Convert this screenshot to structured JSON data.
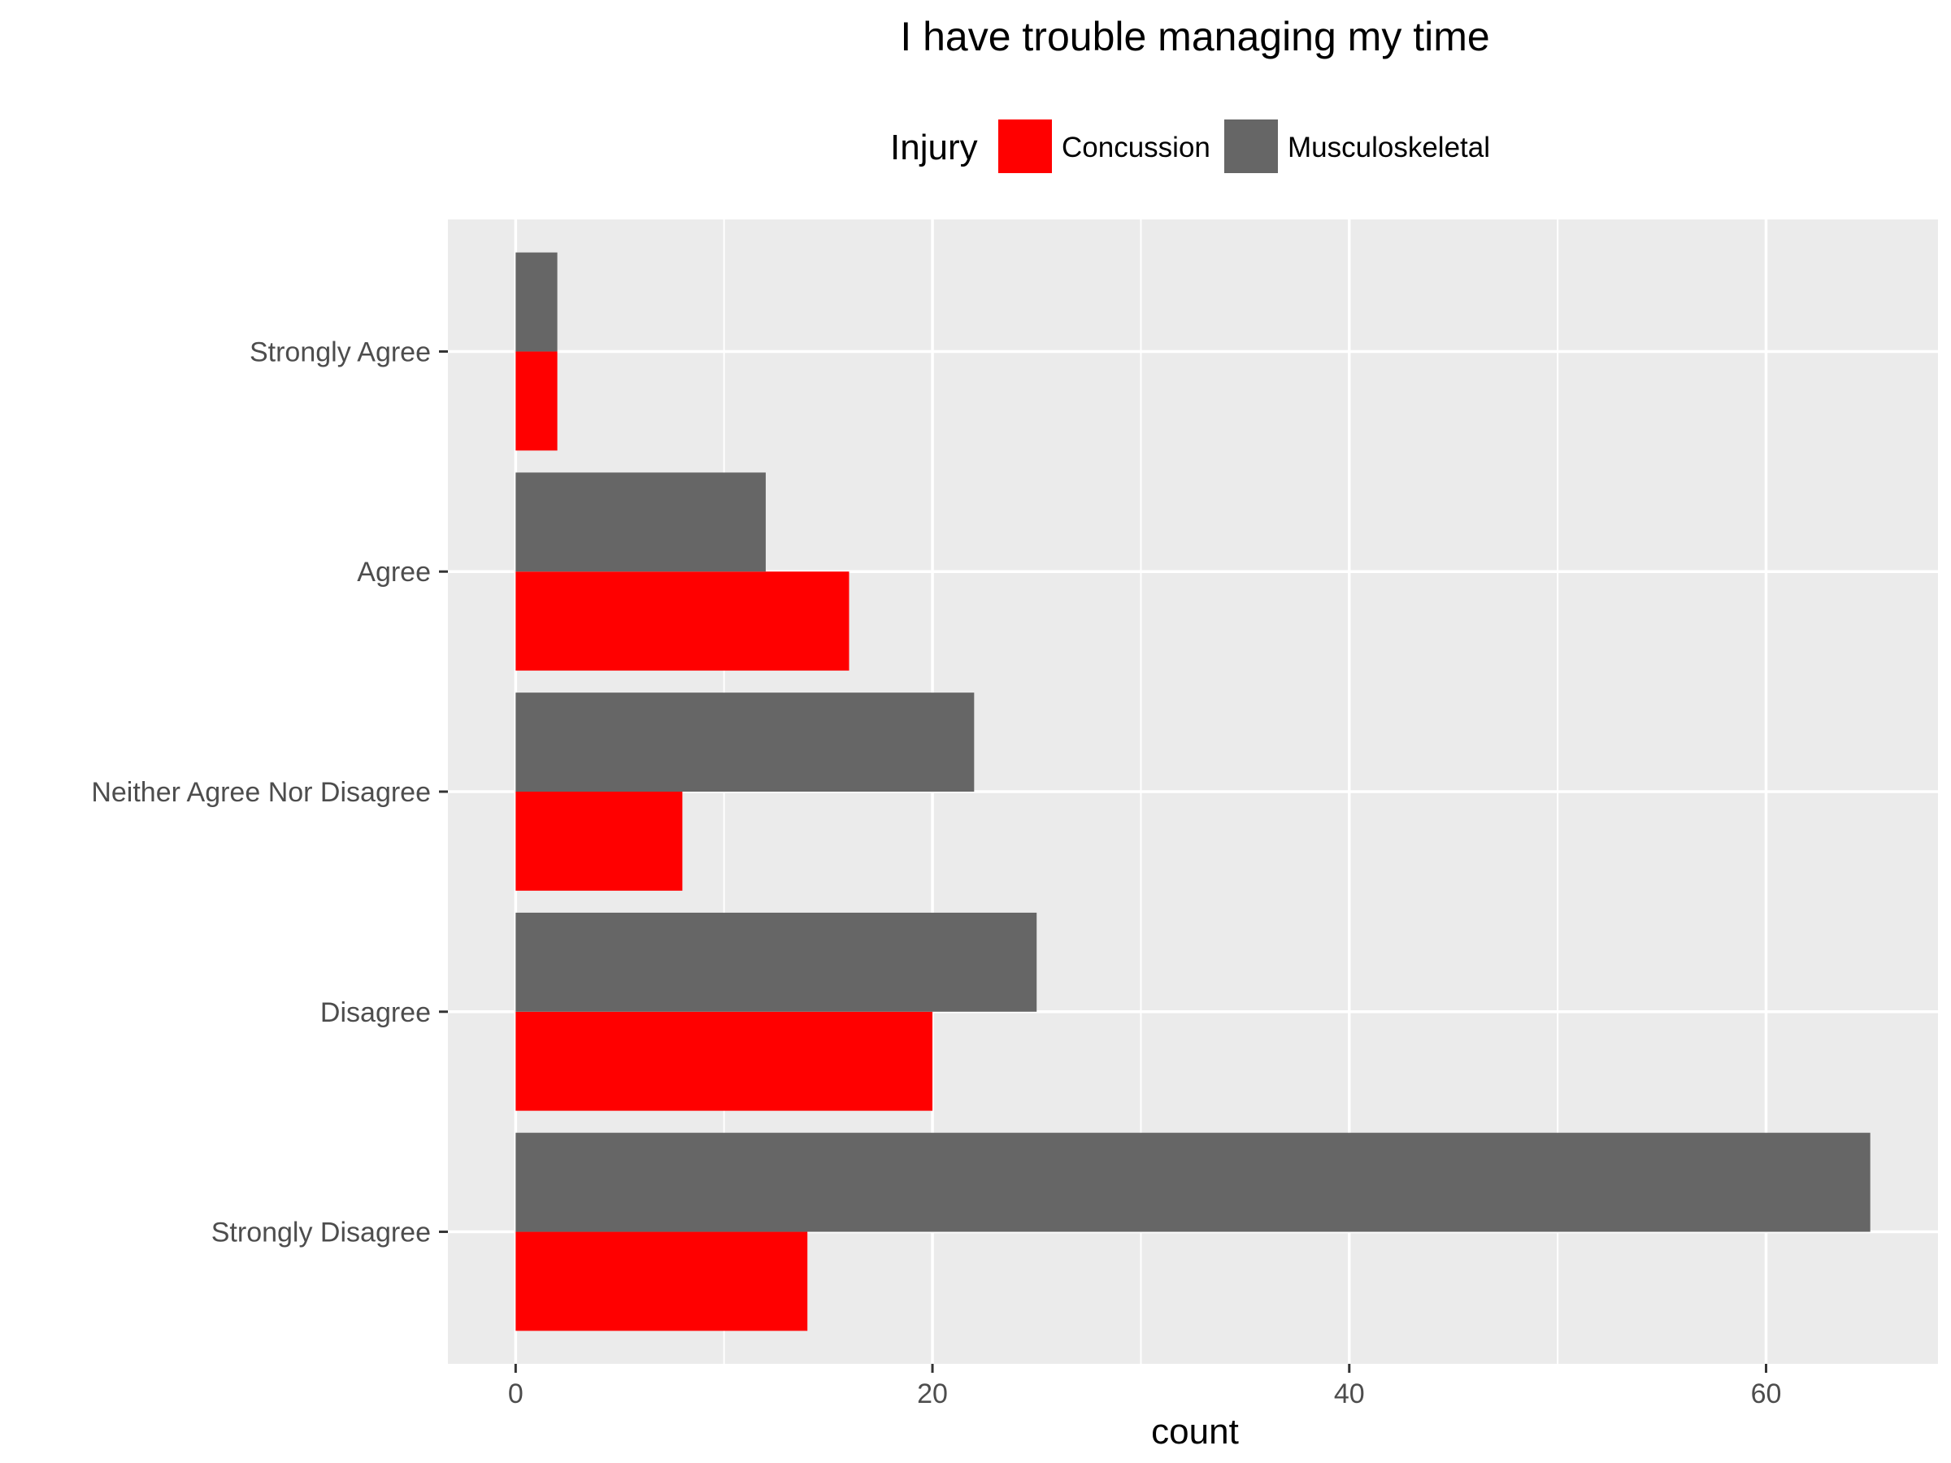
{
  "chart_data": {
    "type": "bar",
    "orientation": "horizontal",
    "title": "I have trouble managing my time",
    "xlabel": "count",
    "ylabel": "",
    "categories": [
      "Strongly Agree",
      "Agree",
      "Neither Agree Nor Disagree",
      "Disagree",
      "Strongly Disagree"
    ],
    "series": [
      {
        "name": "Concussion",
        "color": "#ff0000",
        "values": [
          2,
          16,
          8,
          20,
          14
        ]
      },
      {
        "name": "Musculoskeletal",
        "color": "#666666",
        "values": [
          2,
          12,
          22,
          25,
          65
        ]
      }
    ],
    "legend": {
      "title": "Injury",
      "position": "top"
    },
    "xlim": [
      -3.25,
      68.25
    ],
    "xticks": [
      0,
      20,
      40,
      60
    ],
    "grid": true,
    "panel_background": "#ebebeb"
  }
}
